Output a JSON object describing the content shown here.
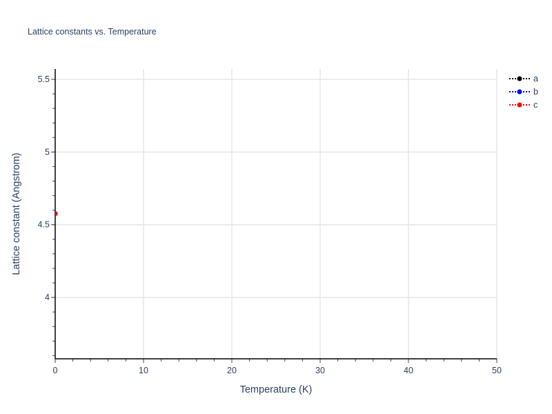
{
  "chart_data": {
    "type": "scatter",
    "title": "Lattice constants vs. Temperature",
    "xlabel": "Temperature (K)",
    "ylabel": "Lattice constant (Angstrom)",
    "xlim": [
      0,
      50
    ],
    "ylim": [
      3.578,
      5.571
    ],
    "xticks": [
      0,
      10,
      20,
      30,
      40,
      50
    ],
    "yticks": [
      4,
      4.5,
      5,
      5.5
    ],
    "ytick_labels": [
      "4",
      "4.5",
      "5",
      "5.5"
    ],
    "grid": true,
    "legend_placement": "top-right",
    "series": [
      {
        "name": "a",
        "color": "#000000",
        "x": [
          0
        ],
        "y": [
          4.576
        ]
      },
      {
        "name": "b",
        "color": "#0000ff",
        "x": [
          0
        ],
        "y": [
          4.576
        ]
      },
      {
        "name": "c",
        "color": "#ff0000",
        "x": [
          0
        ],
        "y": [
          4.576
        ]
      }
    ]
  }
}
